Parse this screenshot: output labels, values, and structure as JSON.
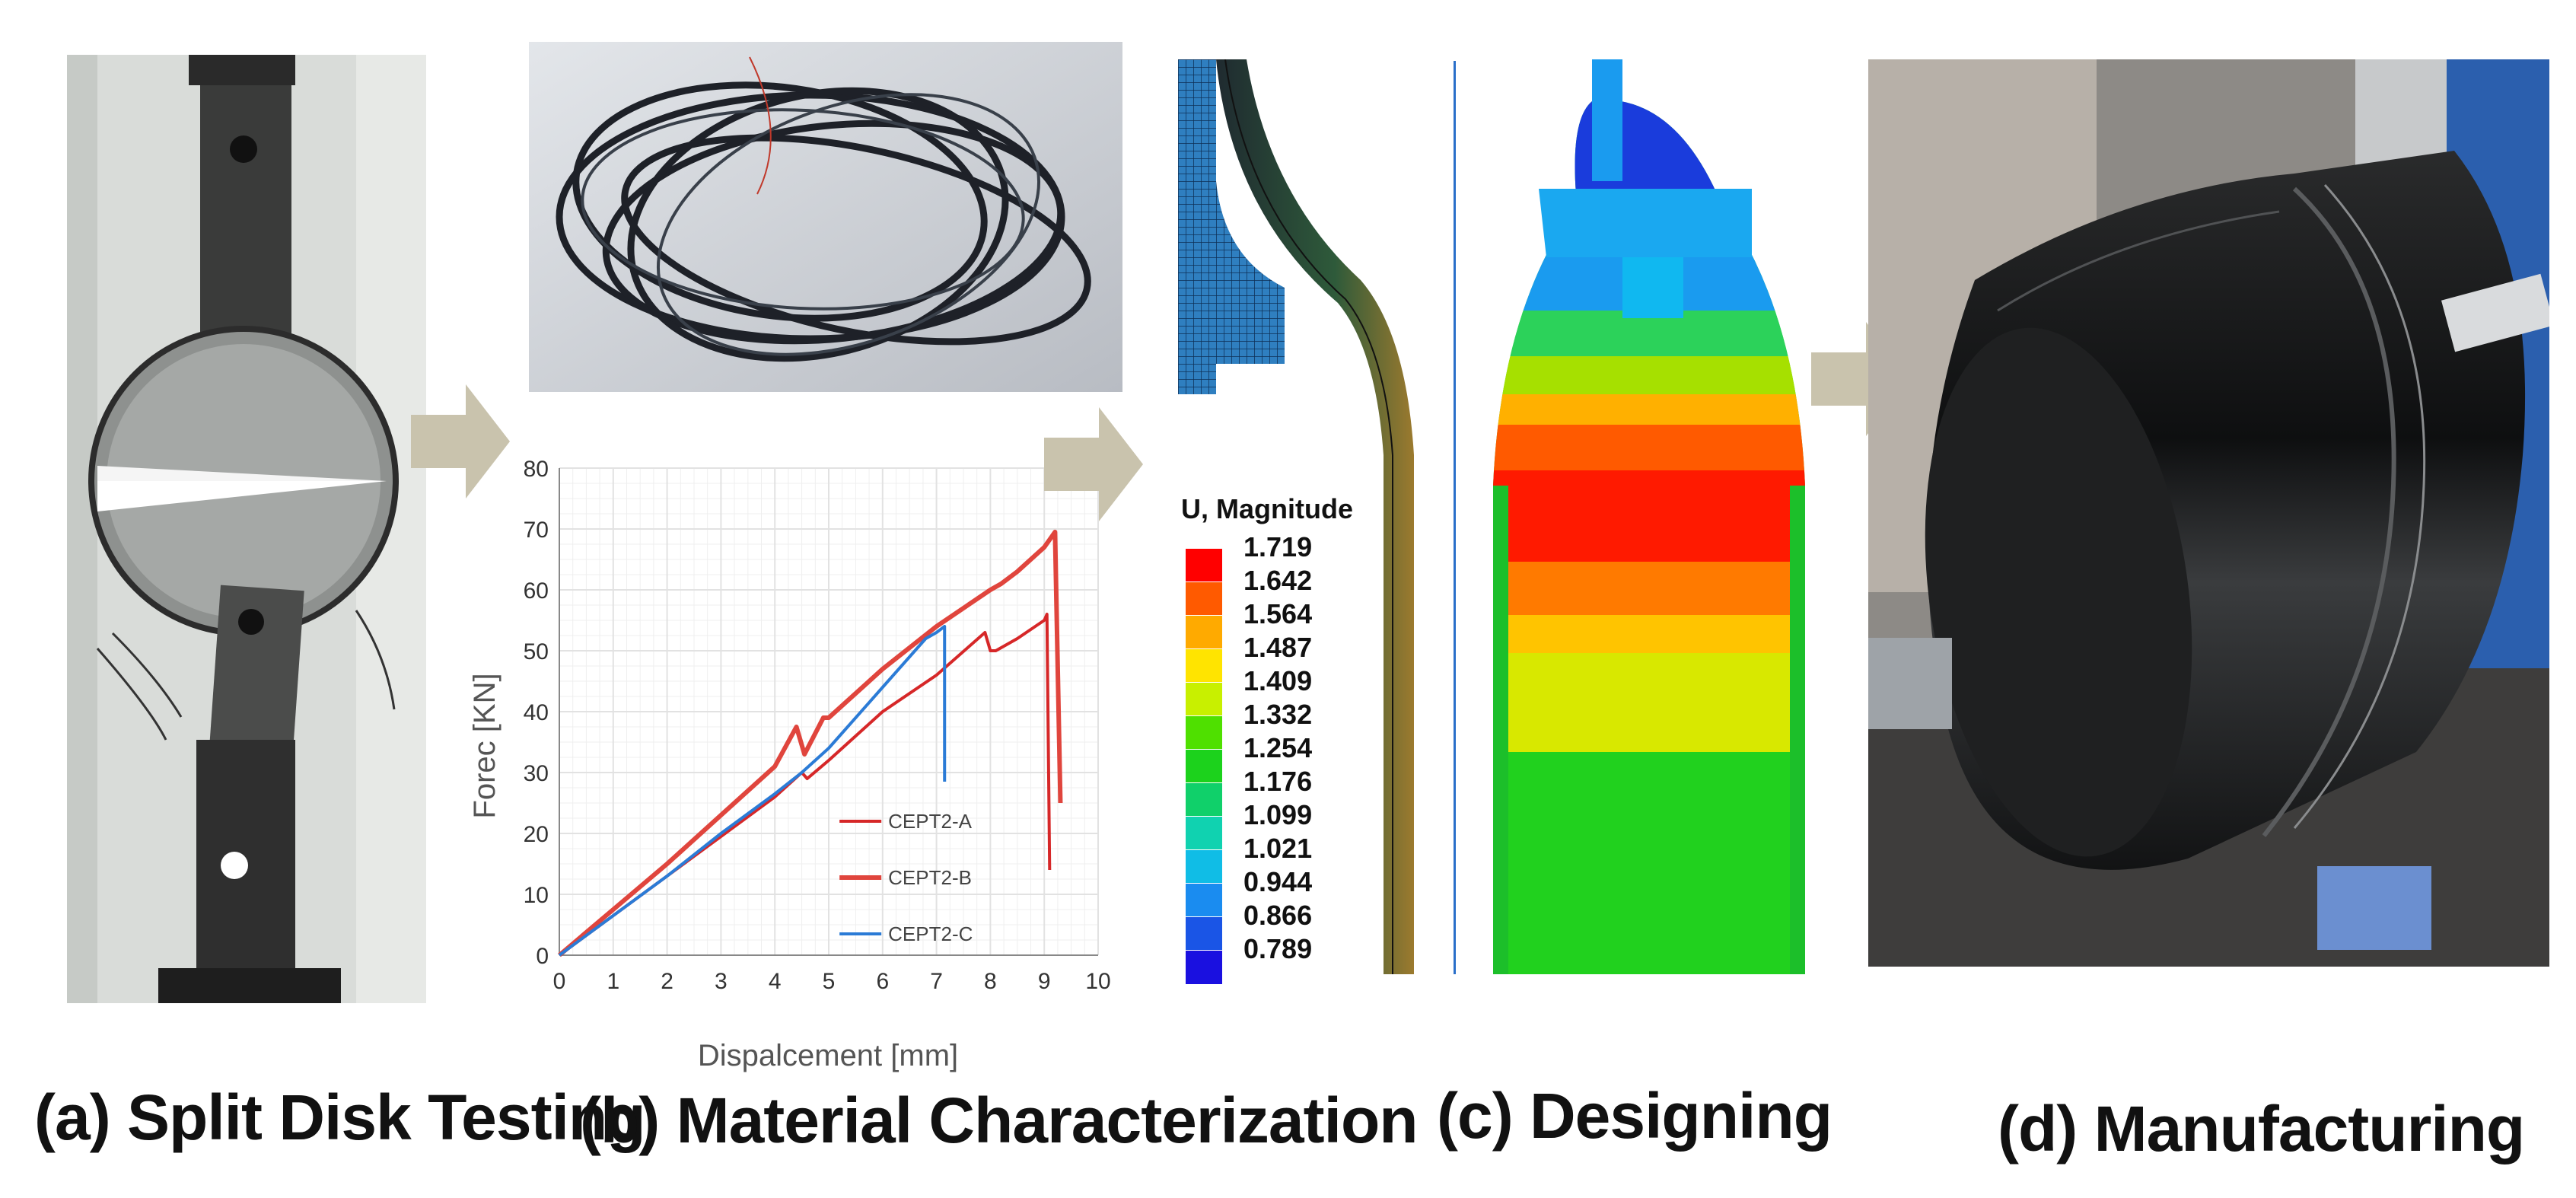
{
  "captions": {
    "a": "(a) Split Disk Testing",
    "b": "(b) Material Characterization",
    "c": "(c) Designing",
    "d": "(d) Manufacturing"
  },
  "colors": {
    "arrow": "#c9c3ad",
    "series_a": "#d62728",
    "series_b": "#e0453d",
    "series_c": "#2b7bd6",
    "grid": "#e2e2e2"
  },
  "chart_data": {
    "type": "line",
    "title": "",
    "xlabel": "Dispalcement [mm]",
    "ylabel": "Forec [KN]",
    "xlim": [
      0,
      10
    ],
    "ylim": [
      0,
      80
    ],
    "xticks": [
      "0",
      "1",
      "2",
      "3",
      "4",
      "5",
      "6",
      "7",
      "8",
      "9",
      "10"
    ],
    "yticks": [
      "0",
      "10",
      "20",
      "30",
      "40",
      "50",
      "60",
      "70",
      "80"
    ],
    "grid": true,
    "legend_position": "bottom-right",
    "series": [
      {
        "name": "CEPT2-A",
        "color": "#d62728",
        "x": [
          0,
          1,
          2,
          3,
          4,
          4.5,
          4.6,
          5,
          5.5,
          6,
          7,
          7.9,
          8.0,
          8.1,
          8.5,
          9.0,
          9.05,
          9.1
        ],
        "y": [
          0,
          6.5,
          13,
          19.5,
          26,
          30,
          29,
          32,
          36,
          40,
          46,
          53,
          50,
          50,
          52,
          55,
          56,
          14
        ]
      },
      {
        "name": "CEPT2-B",
        "color": "#e0453d",
        "x": [
          0,
          1,
          2,
          3,
          4,
          4.4,
          4.55,
          4.9,
          5,
          6,
          7,
          8,
          8.2,
          8.5,
          9.0,
          9.2,
          9.3
        ],
        "y": [
          0,
          7.5,
          15,
          23,
          31,
          37.5,
          33,
          39,
          39,
          47,
          54,
          60,
          61,
          63,
          67,
          69.5,
          25
        ]
      },
      {
        "name": "CEPT2-C",
        "color": "#2b7bd6",
        "x": [
          0,
          1,
          2,
          3,
          4,
          4.5,
          5,
          6,
          6.5,
          6.8,
          7.0,
          7.15,
          7.15
        ],
        "y": [
          0,
          6.5,
          13,
          20,
          26.5,
          30,
          34,
          44,
          49,
          52,
          53,
          54,
          28.5
        ]
      }
    ]
  },
  "legend": {
    "title": "U, Magnitude",
    "values": [
      "1.719",
      "1.642",
      "1.564",
      "1.487",
      "1.409",
      "1.332",
      "1.254",
      "1.176",
      "1.099",
      "1.021",
      "0.944",
      "0.866",
      "0.789"
    ],
    "colors": [
      "#ff0000",
      "#ff5a00",
      "#ffaa00",
      "#ffe400",
      "#c8f000",
      "#4fe000",
      "#1cd21c",
      "#10d06a",
      "#10d2b0",
      "#10bde6",
      "#1a8cf0",
      "#1a55e6",
      "#1a10e0"
    ]
  }
}
